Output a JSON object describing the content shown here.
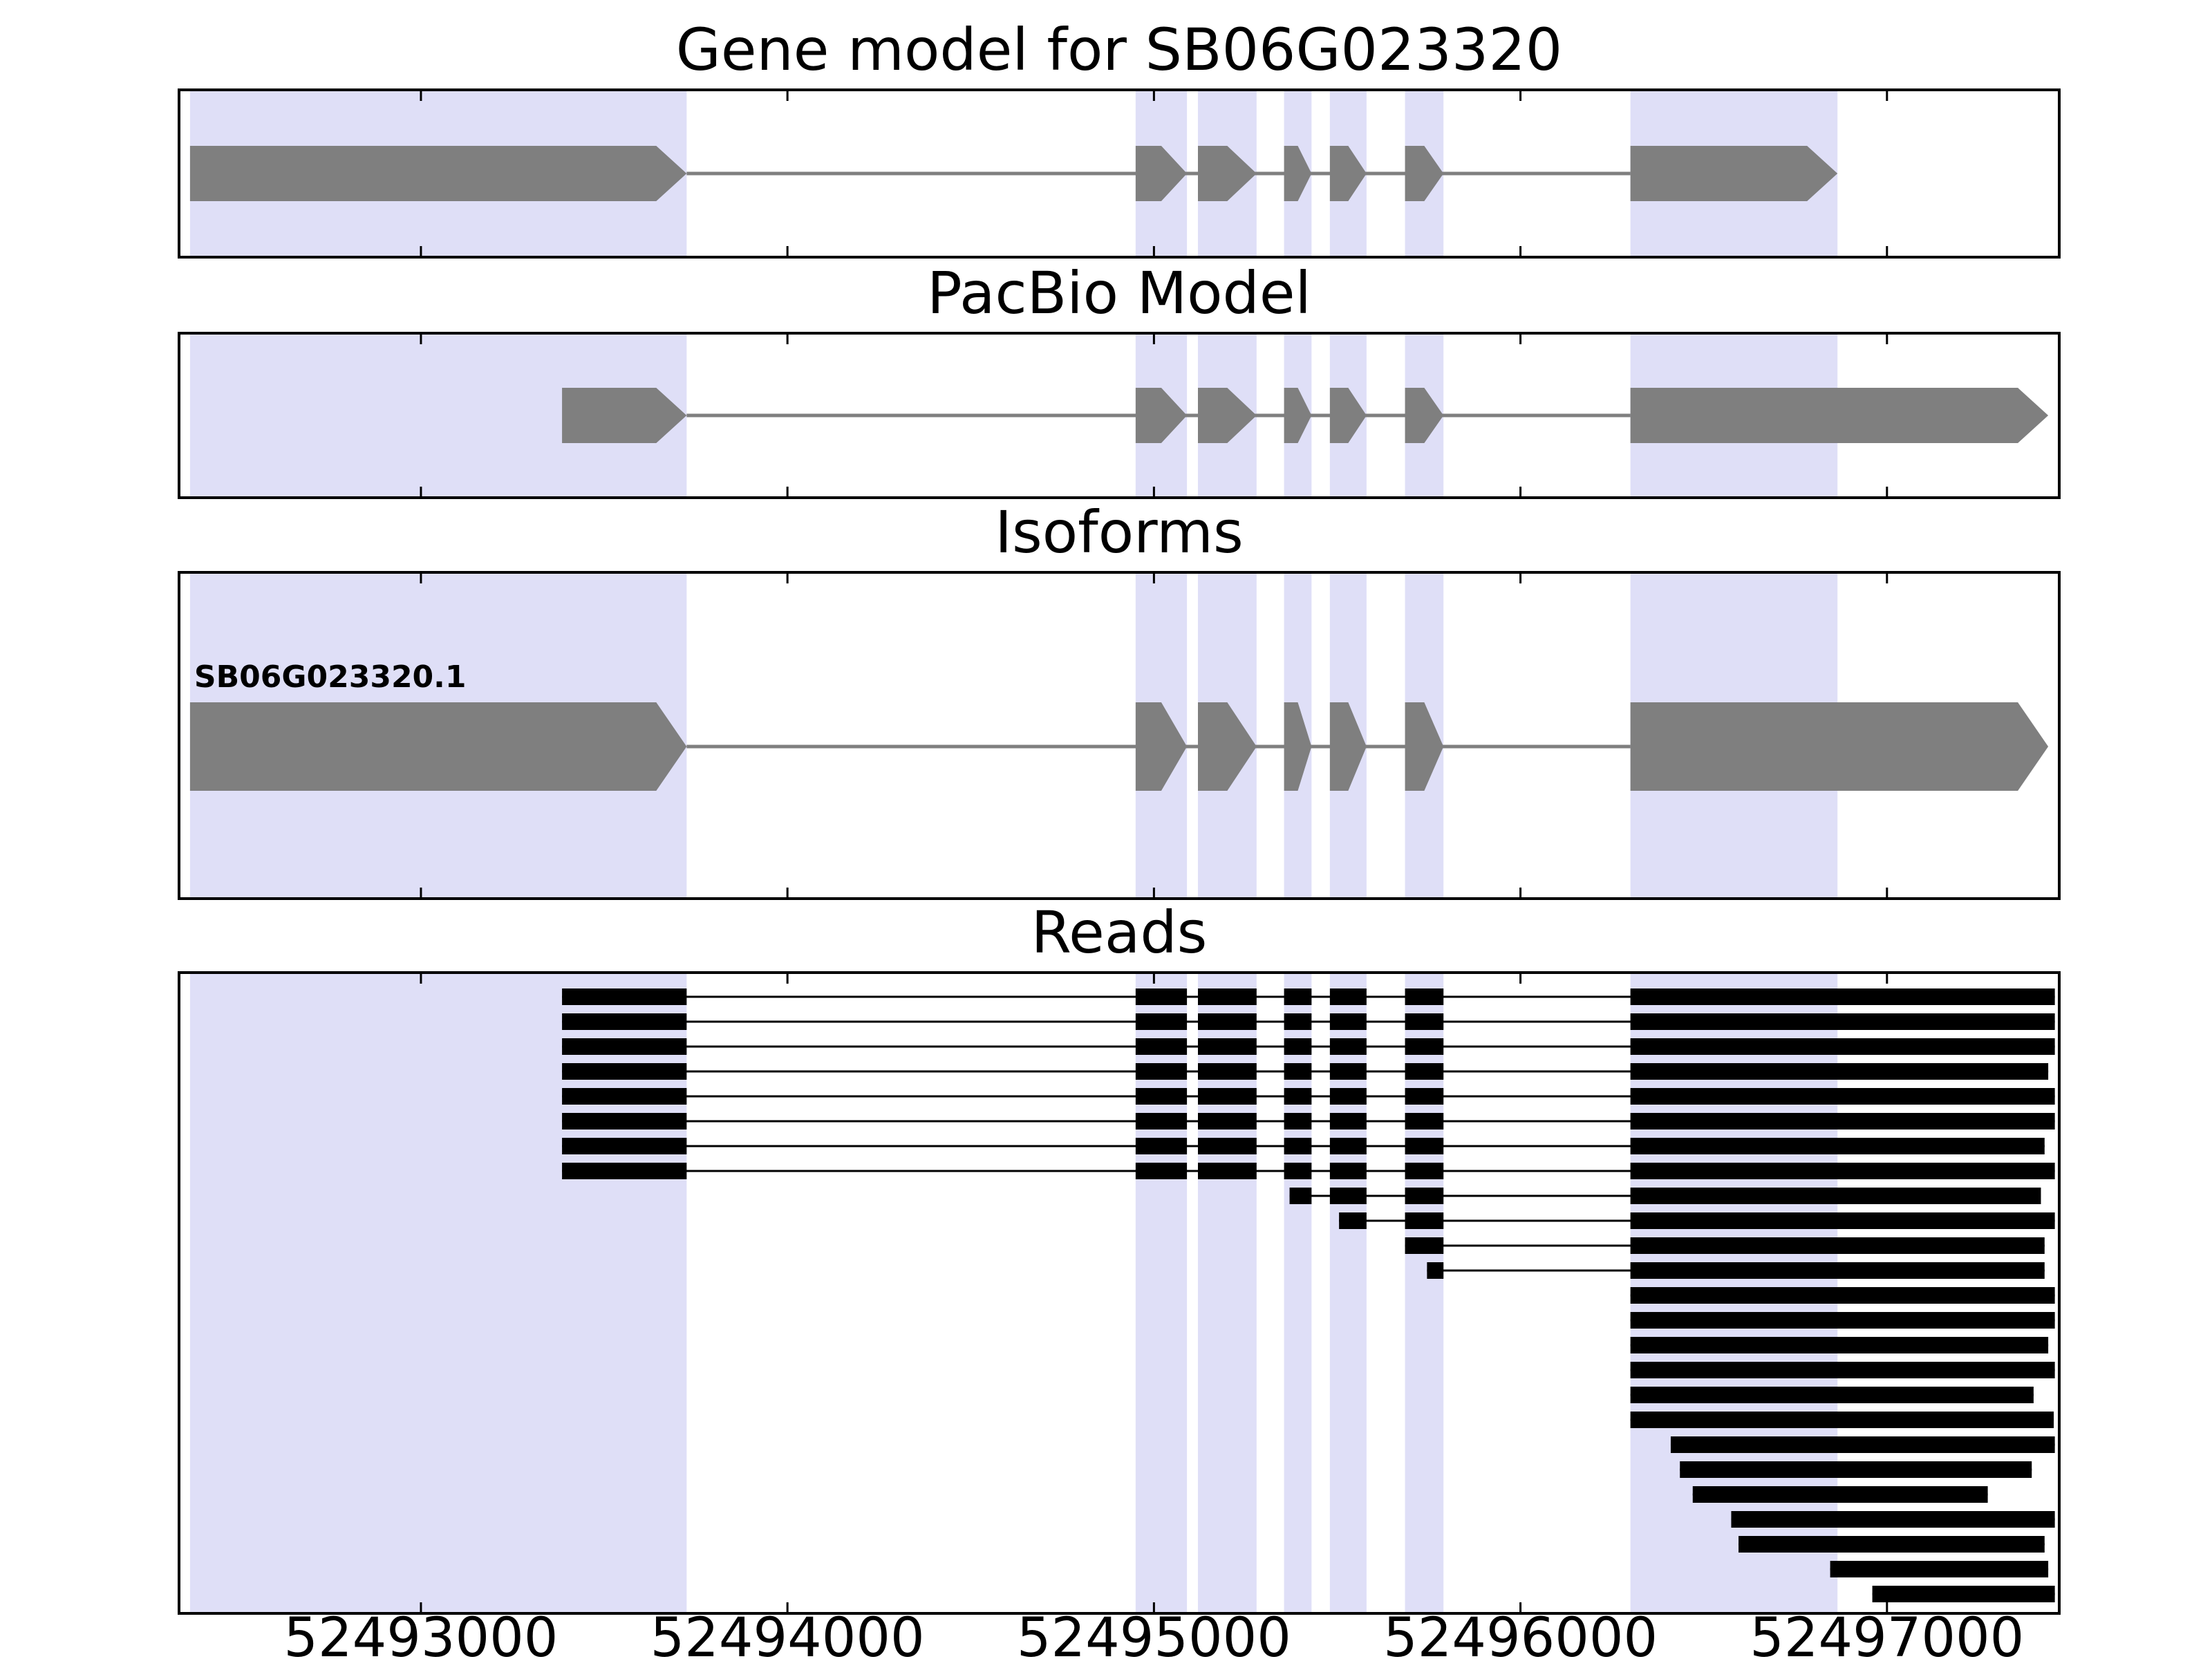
{
  "chart_data": {
    "type": "other",
    "subtype": "gene-model-and-read-alignment-tracks",
    "axis": {
      "xmin": 52492340,
      "xmax": 52497470,
      "tick_values": [
        52493000,
        52494000,
        52495000,
        52496000,
        52497000
      ],
      "tick_labels": [
        "52493000",
        "52494000",
        "52495000",
        "52496000",
        "52497000"
      ]
    },
    "colors": {
      "background": "#ffffff",
      "highlight": "#dfdff7",
      "exon": "#7f7f7f",
      "intron_line": "#7f7f7f",
      "read": "#000000",
      "border": "#000000",
      "text": "#000000"
    },
    "highlight_regions": [
      [
        52492370,
        52493725
      ],
      [
        52494950,
        52495090
      ],
      [
        52495120,
        52495280
      ],
      [
        52495355,
        52495430
      ],
      [
        52495480,
        52495580
      ],
      [
        52495685,
        52495790
      ],
      [
        52496300,
        52496865
      ]
    ],
    "panels": [
      {
        "title": "Gene model for SB06G023320",
        "kind": "model",
        "models": [
          {
            "label": "",
            "strand": "+",
            "exons": [
              [
                52492370,
                52493725
              ],
              [
                52494950,
                52495090
              ],
              [
                52495120,
                52495280
              ],
              [
                52495355,
                52495430
              ],
              [
                52495480,
                52495580
              ],
              [
                52495685,
                52495790
              ],
              [
                52496300,
                52496865
              ]
            ]
          }
        ]
      },
      {
        "title": "PacBio Model",
        "kind": "model",
        "models": [
          {
            "label": "",
            "strand": "+",
            "exons": [
              [
                52493385,
                52493725
              ],
              [
                52494950,
                52495090
              ],
              [
                52495120,
                52495280
              ],
              [
                52495355,
                52495430
              ],
              [
                52495480,
                52495580
              ],
              [
                52495685,
                52495790
              ],
              [
                52496300,
                52497440
              ]
            ]
          }
        ]
      },
      {
        "title": "Isoforms",
        "kind": "model",
        "models": [
          {
            "label": "SB06G023320.1",
            "strand": "+",
            "exons": [
              [
                52492370,
                52493725
              ],
              [
                52494950,
                52495090
              ],
              [
                52495120,
                52495280
              ],
              [
                52495355,
                52495430
              ],
              [
                52495480,
                52495580
              ],
              [
                52495685,
                52495790
              ],
              [
                52496300,
                52497440
              ]
            ]
          }
        ]
      },
      {
        "title": "Reads",
        "kind": "reads",
        "reads": [
          [
            [
              52493385,
              52493725
            ],
            [
              52494950,
              52495090
            ],
            [
              52495120,
              52495280
            ],
            [
              52495355,
              52495430
            ],
            [
              52495480,
              52495580
            ],
            [
              52495685,
              52495790
            ],
            [
              52496300,
              52497458
            ]
          ],
          [
            [
              52493385,
              52493725
            ],
            [
              52494950,
              52495090
            ],
            [
              52495120,
              52495280
            ],
            [
              52495355,
              52495430
            ],
            [
              52495480,
              52495580
            ],
            [
              52495685,
              52495790
            ],
            [
              52496300,
              52497458
            ]
          ],
          [
            [
              52493385,
              52493725
            ],
            [
              52494950,
              52495090
            ],
            [
              52495120,
              52495280
            ],
            [
              52495355,
              52495430
            ],
            [
              52495480,
              52495580
            ],
            [
              52495685,
              52495790
            ],
            [
              52496300,
              52497458
            ]
          ],
          [
            [
              52493385,
              52493725
            ],
            [
              52494950,
              52495090
            ],
            [
              52495120,
              52495280
            ],
            [
              52495355,
              52495430
            ],
            [
              52495480,
              52495580
            ],
            [
              52495685,
              52495790
            ],
            [
              52496300,
              52497440
            ]
          ],
          [
            [
              52493385,
              52493725
            ],
            [
              52494950,
              52495090
            ],
            [
              52495120,
              52495280
            ],
            [
              52495355,
              52495430
            ],
            [
              52495480,
              52495580
            ],
            [
              52495685,
              52495790
            ],
            [
              52496300,
              52497458
            ]
          ],
          [
            [
              52493385,
              52493725
            ],
            [
              52494950,
              52495090
            ],
            [
              52495120,
              52495280
            ],
            [
              52495355,
              52495430
            ],
            [
              52495480,
              52495580
            ],
            [
              52495685,
              52495790
            ],
            [
              52496300,
              52497458
            ]
          ],
          [
            [
              52493385,
              52493725
            ],
            [
              52494950,
              52495090
            ],
            [
              52495120,
              52495280
            ],
            [
              52495355,
              52495430
            ],
            [
              52495480,
              52495580
            ],
            [
              52495685,
              52495790
            ],
            [
              52496300,
              52497430
            ]
          ],
          [
            [
              52493385,
              52493725
            ],
            [
              52494950,
              52495090
            ],
            [
              52495120,
              52495280
            ],
            [
              52495355,
              52495430
            ],
            [
              52495480,
              52495580
            ],
            [
              52495685,
              52495790
            ],
            [
              52496300,
              52497458
            ]
          ],
          [
            [
              52495370,
              52495430
            ],
            [
              52495480,
              52495580
            ],
            [
              52495685,
              52495790
            ],
            [
              52496300,
              52497420
            ]
          ],
          [
            [
              52495505,
              52495580
            ],
            [
              52495685,
              52495790
            ],
            [
              52496300,
              52497458
            ]
          ],
          [
            [
              52495685,
              52495790
            ],
            [
              52496300,
              52497430
            ]
          ],
          [
            [
              52495745,
              52495790
            ],
            [
              52496300,
              52497430
            ]
          ],
          [
            [
              52496300,
              52497458
            ]
          ],
          [
            [
              52496300,
              52497458
            ]
          ],
          [
            [
              52496300,
              52497440
            ]
          ],
          [
            [
              52496300,
              52497458
            ]
          ],
          [
            [
              52496300,
              52497400
            ]
          ],
          [
            [
              52496300,
              52497455
            ]
          ],
          [
            [
              52496410,
              52497458
            ]
          ],
          [
            [
              52496435,
              52497395
            ]
          ],
          [
            [
              52496470,
              52497275
            ]
          ],
          [
            [
              52496575,
              52497458
            ]
          ],
          [
            [
              52496595,
              52497430
            ]
          ],
          [
            [
              52496845,
              52497440
            ]
          ],
          [
            [
              52496960,
              52497458
            ]
          ]
        ]
      }
    ]
  }
}
